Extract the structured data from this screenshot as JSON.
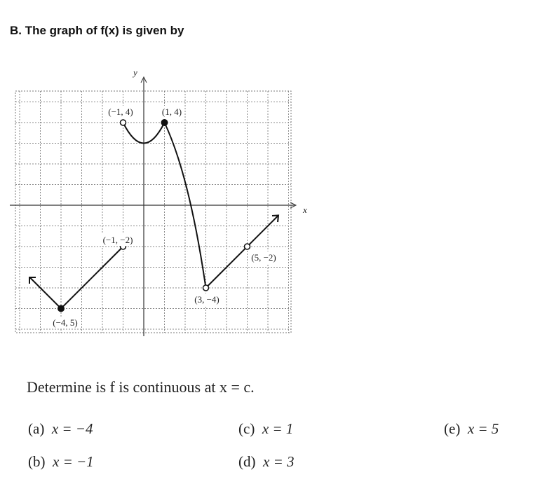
{
  "heading": "B. The graph of f(x) is given by",
  "graph": {
    "axis_labels": {
      "x": "x",
      "y": "y"
    },
    "point_labels": [
      "(−1, 4)",
      "(1, 4)",
      "(−1, −2)",
      "(5, −2)",
      "(3, −4)",
      "(−4, 5)"
    ]
  },
  "question": "Determine is f is continuous at x = c.",
  "options": [
    {
      "label": "(a)",
      "expr": "x = −4"
    },
    {
      "label": "(b)",
      "expr": "x = −1"
    },
    {
      "label": "(c)",
      "expr": "x = 1"
    },
    {
      "label": "(d)",
      "expr": "x = 3"
    },
    {
      "label": "(e)",
      "expr": "x = 5"
    }
  ]
}
